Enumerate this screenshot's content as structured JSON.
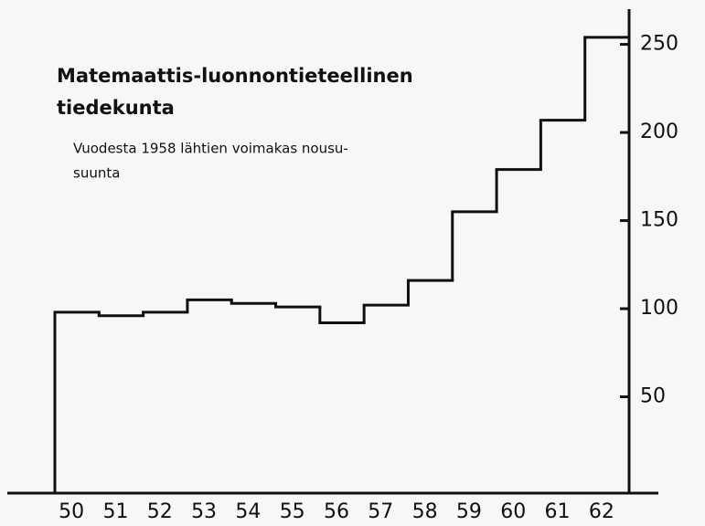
{
  "chart_data": {
    "type": "step",
    "title": [
      "Matemaattis-luonnontieteellinen",
      "tiedekunta"
    ],
    "subtitle": [
      "Vuodesta 1958 lähtien voimakas nousu-",
      "suunta"
    ],
    "categories": [
      "50",
      "51",
      "52",
      "53",
      "54",
      "55",
      "56",
      "57",
      "58",
      "59",
      "60",
      "61",
      "62"
    ],
    "values": [
      98,
      96,
      98,
      105,
      103,
      101,
      92,
      102,
      116,
      155,
      179,
      207,
      254
    ],
    "color": "#111111",
    "ylim": [
      0,
      270
    ],
    "yticks": [
      50,
      100,
      150,
      200,
      250
    ],
    "grid": false
  }
}
